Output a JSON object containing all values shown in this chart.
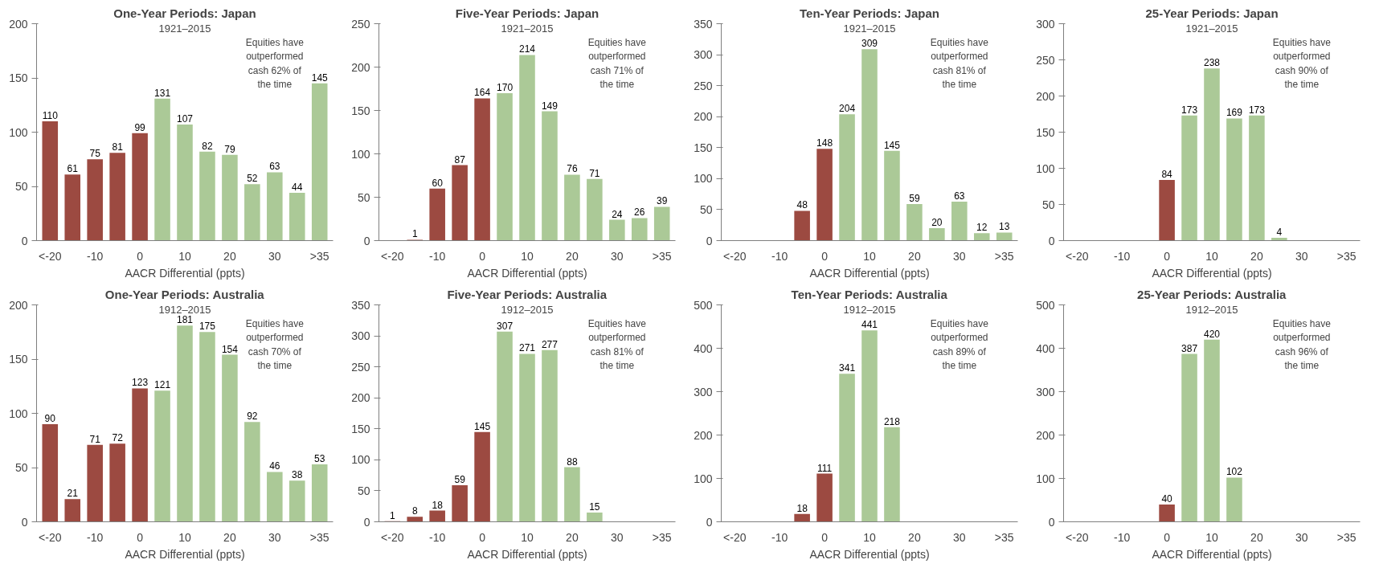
{
  "chart_data": [
    {
      "type": "bar",
      "title": "One-Year Periods: Japan",
      "subtitle": "1921–2015",
      "xlabel": "AACR Differential (ppts)",
      "categories": [
        "<-20",
        null,
        "-10",
        null,
        "0",
        null,
        "10",
        null,
        "20",
        null,
        "30",
        null,
        ">35"
      ],
      "values": [
        110,
        61,
        75,
        81,
        99,
        131,
        107,
        82,
        79,
        52,
        63,
        44,
        145
      ],
      "value_labels": [
        "110",
        "61",
        "75",
        "81",
        "99",
        "131",
        "107",
        "82",
        "79",
        "52",
        "63",
        "44",
        "145"
      ],
      "colors": [
        "#9c4a41",
        "#9c4a41",
        "#9c4a41",
        "#9c4a41",
        "#9c4a41",
        "#abc997",
        "#abc997",
        "#abc997",
        "#abc997",
        "#abc997",
        "#abc997",
        "#abc997",
        "#abc997"
      ],
      "ylim": [
        0,
        200
      ],
      "yticks": [
        0,
        50,
        100,
        150,
        200
      ],
      "grid": false,
      "annotations": [
        "Equities have outperformed cash 62% of the time"
      ]
    },
    {
      "type": "bar",
      "title": "Five-Year Periods: Japan",
      "subtitle": "1921–2015",
      "xlabel": "AACR Differential (ppts)",
      "categories": [
        "<-20",
        null,
        "-10",
        null,
        "0",
        null,
        "10",
        null,
        "20",
        null,
        "30",
        null,
        ">35"
      ],
      "values": [
        0,
        1,
        60,
        87,
        164,
        170,
        214,
        149,
        76,
        71,
        24,
        26,
        39
      ],
      "value_labels": [
        null,
        "1",
        "60",
        "87",
        "164",
        "170",
        "214",
        "149",
        "76",
        "71",
        "24",
        "26",
        "39"
      ],
      "colors": [
        "#9c4a41",
        "#9c4a41",
        "#9c4a41",
        "#9c4a41",
        "#9c4a41",
        "#abc997",
        "#abc997",
        "#abc997",
        "#abc997",
        "#abc997",
        "#abc997",
        "#abc997",
        "#abc997"
      ],
      "ylim": [
        0,
        250
      ],
      "yticks": [
        0,
        50,
        100,
        150,
        200,
        250
      ],
      "grid": false,
      "annotations": [
        "Equities have outperformed cash 71% of the time"
      ]
    },
    {
      "type": "bar",
      "title": "Ten-Year Periods: Japan",
      "subtitle": "1921–2015",
      "xlabel": "AACR Differential (ppts)",
      "categories": [
        "<-20",
        null,
        "-10",
        null,
        "0",
        null,
        "10",
        null,
        "20",
        null,
        "30",
        null,
        ">35"
      ],
      "values": [
        0,
        0,
        0,
        48,
        148,
        204,
        309,
        145,
        59,
        20,
        63,
        12,
        13
      ],
      "value_labels": [
        null,
        null,
        null,
        "48",
        "148",
        "204",
        "309",
        "145",
        "59",
        "20",
        "63",
        "12",
        "13"
      ],
      "colors": [
        "#9c4a41",
        "#9c4a41",
        "#9c4a41",
        "#9c4a41",
        "#9c4a41",
        "#abc997",
        "#abc997",
        "#abc997",
        "#abc997",
        "#abc997",
        "#abc997",
        "#abc997",
        "#abc997"
      ],
      "ylim": [
        0,
        350
      ],
      "yticks": [
        0,
        50,
        100,
        150,
        200,
        250,
        300,
        350
      ],
      "grid": false,
      "annotations": [
        "Equities have outperformed cash 81% of the time"
      ]
    },
    {
      "type": "bar",
      "title": "25-Year Periods: Japan",
      "subtitle": "1921–2015",
      "xlabel": "AACR Differential (ppts)",
      "categories": [
        "<-20",
        null,
        "-10",
        null,
        "0",
        null,
        "10",
        null,
        "20",
        null,
        "30",
        null,
        ">35"
      ],
      "values": [
        0,
        0,
        0,
        0,
        84,
        173,
        238,
        169,
        173,
        4,
        0,
        0,
        0
      ],
      "value_labels": [
        null,
        null,
        null,
        null,
        "84",
        "173",
        "238",
        "169",
        "173",
        "4",
        null,
        null,
        null
      ],
      "colors": [
        "#9c4a41",
        "#9c4a41",
        "#9c4a41",
        "#9c4a41",
        "#9c4a41",
        "#abc997",
        "#abc997",
        "#abc997",
        "#abc997",
        "#abc997",
        "#abc997",
        "#abc997",
        "#abc997"
      ],
      "ylim": [
        0,
        300
      ],
      "yticks": [
        0,
        50,
        100,
        150,
        200,
        250,
        300
      ],
      "grid": false,
      "annotations": [
        "Equities have outperformed cash 90% of the time"
      ]
    },
    {
      "type": "bar",
      "title": "One-Year Periods: Australia",
      "subtitle": "1912–2015",
      "xlabel": "AACR Differential (ppts)",
      "categories": [
        "<-20",
        null,
        "-10",
        null,
        "0",
        null,
        "10",
        null,
        "20",
        null,
        "30",
        null,
        ">35"
      ],
      "values": [
        90,
        21,
        71,
        72,
        123,
        121,
        181,
        175,
        154,
        92,
        46,
        38,
        53
      ],
      "value_labels": [
        "90",
        "21",
        "71",
        "72",
        "123",
        "121",
        "181",
        "175",
        "154",
        "92",
        "46",
        "38",
        "53"
      ],
      "colors": [
        "#9c4a41",
        "#9c4a41",
        "#9c4a41",
        "#9c4a41",
        "#9c4a41",
        "#abc997",
        "#abc997",
        "#abc997",
        "#abc997",
        "#abc997",
        "#abc997",
        "#abc997",
        "#abc997"
      ],
      "ylim": [
        0,
        200
      ],
      "yticks": [
        0,
        50,
        100,
        150,
        200
      ],
      "grid": false,
      "annotations": [
        "Equities have outperformed cash 70% of the time"
      ]
    },
    {
      "type": "bar",
      "title": "Five-Year Periods: Australia",
      "subtitle": "1912–2015",
      "xlabel": "AACR Differential (ppts)",
      "categories": [
        "<-20",
        null,
        "-10",
        null,
        "0",
        null,
        "10",
        null,
        "20",
        null,
        "30",
        null,
        ">35"
      ],
      "values": [
        1,
        8,
        18,
        59,
        145,
        307,
        271,
        277,
        88,
        15,
        0,
        0,
        0
      ],
      "value_labels": [
        "1",
        "8",
        "18",
        "59",
        "145",
        "307",
        "271",
        "277",
        "88",
        "15",
        null,
        null,
        null
      ],
      "colors": [
        "#9c4a41",
        "#9c4a41",
        "#9c4a41",
        "#9c4a41",
        "#9c4a41",
        "#abc997",
        "#abc997",
        "#abc997",
        "#abc997",
        "#abc997",
        "#abc997",
        "#abc997",
        "#abc997"
      ],
      "ylim": [
        0,
        350
      ],
      "yticks": [
        0,
        50,
        100,
        150,
        200,
        250,
        300,
        350
      ],
      "grid": false,
      "annotations": [
        "Equities have outperformed cash 81% of the time"
      ]
    },
    {
      "type": "bar",
      "title": "Ten-Year Periods: Australia",
      "subtitle": "1912–2015",
      "xlabel": "AACR Differential (ppts)",
      "categories": [
        "<-20",
        null,
        "-10",
        null,
        "0",
        null,
        "10",
        null,
        "20",
        null,
        "30",
        null,
        ">35"
      ],
      "values": [
        0,
        0,
        0,
        18,
        111,
        341,
        441,
        218,
        0,
        0,
        0,
        0,
        0
      ],
      "value_labels": [
        null,
        null,
        null,
        "18",
        "111",
        "341",
        "441",
        "218",
        null,
        null,
        null,
        null,
        null
      ],
      "colors": [
        "#9c4a41",
        "#9c4a41",
        "#9c4a41",
        "#9c4a41",
        "#9c4a41",
        "#abc997",
        "#abc997",
        "#abc997",
        "#abc997",
        "#abc997",
        "#abc997",
        "#abc997",
        "#abc997"
      ],
      "ylim": [
        0,
        500
      ],
      "yticks": [
        0,
        100,
        200,
        300,
        400,
        500
      ],
      "grid": false,
      "annotations": [
        "Equities have outperformed cash 89% of the time"
      ]
    },
    {
      "type": "bar",
      "title": "25-Year Periods: Australia",
      "subtitle": "1912–2015",
      "xlabel": "AACR Differential (ppts)",
      "categories": [
        "<-20",
        null,
        "-10",
        null,
        "0",
        null,
        "10",
        null,
        "20",
        null,
        "30",
        null,
        ">35"
      ],
      "values": [
        0,
        0,
        0,
        0,
        40,
        387,
        420,
        102,
        0,
        0,
        0,
        0,
        0
      ],
      "value_labels": [
        null,
        null,
        null,
        null,
        "40",
        "387",
        "420",
        "102",
        null,
        null,
        null,
        null,
        null
      ],
      "colors": [
        "#9c4a41",
        "#9c4a41",
        "#9c4a41",
        "#9c4a41",
        "#9c4a41",
        "#abc997",
        "#abc997",
        "#abc997",
        "#abc997",
        "#abc997",
        "#abc997",
        "#abc997",
        "#abc997"
      ],
      "ylim": [
        0,
        500
      ],
      "yticks": [
        0,
        100,
        200,
        300,
        400,
        500
      ],
      "grid": false,
      "annotations": [
        "Equities have outperformed cash 96% of the time"
      ]
    }
  ]
}
